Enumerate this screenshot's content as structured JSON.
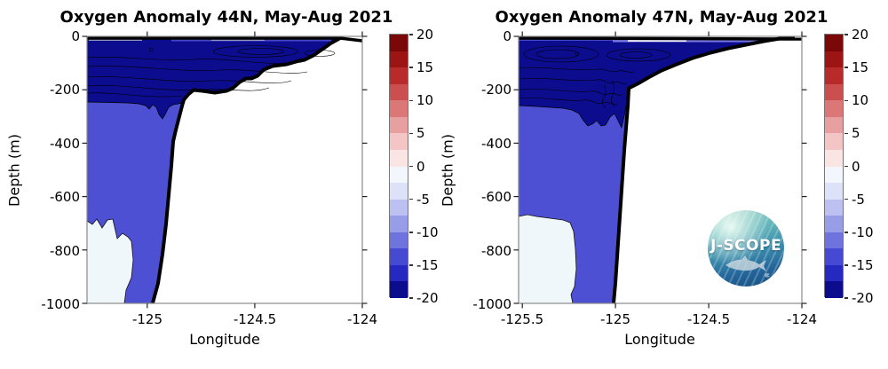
{
  "figure": {
    "background": "#ffffff"
  },
  "charts": [
    {
      "title": "Oxygen Anomaly 44N, May-Aug 2021",
      "xlabel": "Longitude",
      "ylabel": "Depth (m)",
      "x_ticks": [
        "-125",
        "-124.5",
        "-124"
      ],
      "y_ticks": [
        "0",
        "-200",
        "-400",
        "-600",
        "-800",
        "-1000"
      ]
    },
    {
      "title": "Oxygen Anomaly 47N, May-Aug 2021",
      "xlabel": "Longitude",
      "ylabel": "Depth (m)",
      "x_ticks": [
        "-125.5",
        "-125",
        "-124.5",
        "-124"
      ],
      "y_ticks": [
        "0",
        "-200",
        "-400",
        "-600",
        "-800",
        "-1000"
      ]
    }
  ],
  "colorbar": {
    "ticks": [
      "20",
      "15",
      "10",
      "5",
      "0",
      "-5",
      "-10",
      "-15",
      "-20"
    ],
    "colors_top_to_bottom": [
      "#7a0808",
      "#9d1414",
      "#b92b2b",
      "#cb4f4f",
      "#db7777",
      "#e89f9f",
      "#f3c5c5",
      "#fbe4e4",
      "#f3f6fd",
      "#dde2f8",
      "#bcc1f1",
      "#989de7",
      "#6f73de",
      "#4649d1",
      "#2629bf",
      "#0c0c8e"
    ]
  },
  "colors": {
    "navy_fill": "#0c0c8e",
    "mid_blue_fill": "#4d50d2",
    "pale_fill": "#f0f7fa",
    "land": "#ffffff",
    "spine": "#8a8a8a",
    "bathy_line": "#000000",
    "surface_gray_strip": "#9093b8",
    "surface_periwinkle_strip": "#7377dd",
    "surface_white_patch": "#e9eaf6",
    "surface_blue_strip": "#4448c5"
  },
  "logo": {
    "text": "J-SCOPE"
  },
  "chart_data": [
    {
      "type": "heatmap",
      "subtype": "filled-contour-ocean-section",
      "title": "Oxygen Anomaly 44N, May-Aug 2021",
      "xlabel": "Longitude",
      "ylabel": "Depth (m)",
      "xlim": [
        -125.28,
        -124.0
      ],
      "ylim": [
        -1000,
        0
      ],
      "x_tick_values": [
        -125,
        -124.5,
        -124
      ],
      "y_tick_values": [
        0,
        -200,
        -400,
        -600,
        -800,
        -1000
      ],
      "colorbar_range": [
        -20,
        20
      ],
      "colorbar_tick_values": [
        20,
        15,
        10,
        5,
        0,
        -5,
        -10,
        -15,
        -20
      ],
      "colorbar_n_segments": 16,
      "grid": false,
      "legend": "colorbar-right",
      "filled_regions": [
        {
          "value_range": [
            -20,
            -15
          ],
          "color": "#0c0c8e",
          "extent": "surface layer from 0 m down to about -250 m across the shelf, with internal contour lines near -17.5"
        },
        {
          "value_range": [
            -15,
            -10
          ],
          "color": "#4d50d2",
          "extent": "mid-water from about -250 m down to the seafloor slope"
        },
        {
          "value_range": [
            -2.5,
            0
          ],
          "color": "#f0f7fa",
          "extent": "offshore deep water below about -690 m at the western edge"
        }
      ],
      "bathymetry_profile_lon_depth_m": [
        [
          -124.1,
          0
        ],
        [
          -124.14,
          -25
        ],
        [
          -124.19,
          -48
        ],
        [
          -124.23,
          -71
        ],
        [
          -124.27,
          -88
        ],
        [
          -124.29,
          -91
        ],
        [
          -124.35,
          -105
        ],
        [
          -124.42,
          -111
        ],
        [
          -124.46,
          -125
        ],
        [
          -124.49,
          -148
        ],
        [
          -124.52,
          -158
        ],
        [
          -124.54,
          -158
        ],
        [
          -124.57,
          -171
        ],
        [
          -124.6,
          -194
        ],
        [
          -124.63,
          -204
        ],
        [
          -124.69,
          -211
        ],
        [
          -124.74,
          -204
        ],
        [
          -124.79,
          -201
        ],
        [
          -124.81,
          -218
        ],
        [
          -124.83,
          -238
        ],
        [
          -124.84,
          -261
        ],
        [
          -124.87,
          -350
        ],
        [
          -124.88,
          -394
        ],
        [
          -124.89,
          -483
        ],
        [
          -124.9,
          -593
        ],
        [
          -124.91,
          -703
        ],
        [
          -124.93,
          -816
        ],
        [
          -124.95,
          -925
        ],
        [
          -124.97,
          -1000
        ]
      ]
    },
    {
      "type": "heatmap",
      "subtype": "filled-contour-ocean-section",
      "title": "Oxygen Anomaly 47N, May-Aug 2021",
      "xlabel": "Longitude",
      "ylabel": "Depth (m)",
      "xlim": [
        -125.52,
        -124.0
      ],
      "ylim": [
        -1000,
        0
      ],
      "x_tick_values": [
        -125.5,
        -125,
        -124.5,
        -124
      ],
      "y_tick_values": [
        0,
        -200,
        -400,
        -600,
        -800,
        -1000
      ],
      "colorbar_range": [
        -20,
        20
      ],
      "colorbar_tick_values": [
        20,
        15,
        10,
        5,
        0,
        -5,
        -10,
        -15,
        -20
      ],
      "colorbar_n_segments": 16,
      "grid": false,
      "legend": "colorbar-right",
      "filled_regions": [
        {
          "value_range": [
            -20,
            -15
          ],
          "color": "#0c0c8e",
          "extent": "surface layer from 0 m down to about -265 m, scalloped lower edge with dips to about -340 m near the slope"
        },
        {
          "value_range": [
            -15,
            -10
          ],
          "color": "#4d50d2",
          "extent": "mid-water from about -265 m down to the seafloor slope"
        },
        {
          "value_range": [
            -2.5,
            0
          ],
          "color": "#f0f7fa",
          "extent": "offshore deep water below about -675 m at the western edge"
        }
      ],
      "bathymetry_profile_lon_depth_m": [
        [
          -124.04,
          -2
        ],
        [
          -124.12,
          -8
        ],
        [
          -124.21,
          -18
        ],
        [
          -124.3,
          -32
        ],
        [
          -124.4,
          -45
        ],
        [
          -124.49,
          -61
        ],
        [
          -124.59,
          -81
        ],
        [
          -124.67,
          -105
        ],
        [
          -124.75,
          -128
        ],
        [
          -124.82,
          -154
        ],
        [
          -124.88,
          -178
        ],
        [
          -124.93,
          -194
        ],
        [
          -124.93,
          -261
        ],
        [
          -124.94,
          -344
        ],
        [
          -124.95,
          -427
        ],
        [
          -124.96,
          -527
        ],
        [
          -124.97,
          -626
        ],
        [
          -124.98,
          -726
        ],
        [
          -124.99,
          -825
        ],
        [
          -125.01,
          -925
        ],
        [
          -125.01,
          -1000
        ]
      ]
    }
  ]
}
